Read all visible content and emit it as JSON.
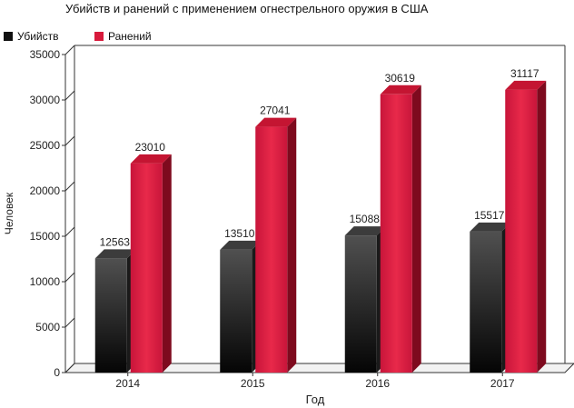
{
  "chart_data": {
    "type": "bar",
    "title": "Убийств и ранений с применением огнестрельного оружия в США",
    "xlabel": "Год",
    "ylabel": "Человек",
    "categories": [
      "2014",
      "2015",
      "2016",
      "2017"
    ],
    "series": [
      {
        "name": "Убийств",
        "values": [
          12563,
          13510,
          15088,
          15517
        ]
      },
      {
        "name": "Ранений",
        "values": [
          23010,
          27041,
          30619,
          31117
        ]
      }
    ],
    "ylim": [
      0,
      35000
    ],
    "yticks": [
      "0",
      "5000",
      "10000",
      "15000",
      "20000",
      "25000",
      "30000",
      "35000"
    ],
    "grid": false,
    "legend_position": "top-left",
    "colors": {
      "kills_front_top": "#505050",
      "kills_front_bottom": "#050505",
      "kills_side": "#1a1a1a",
      "kills_top": "#3c3c3c",
      "wounds_front": "#d81a3c",
      "wounds_side": "#7e0a1e",
      "wounds_top": "#c41532"
    }
  }
}
